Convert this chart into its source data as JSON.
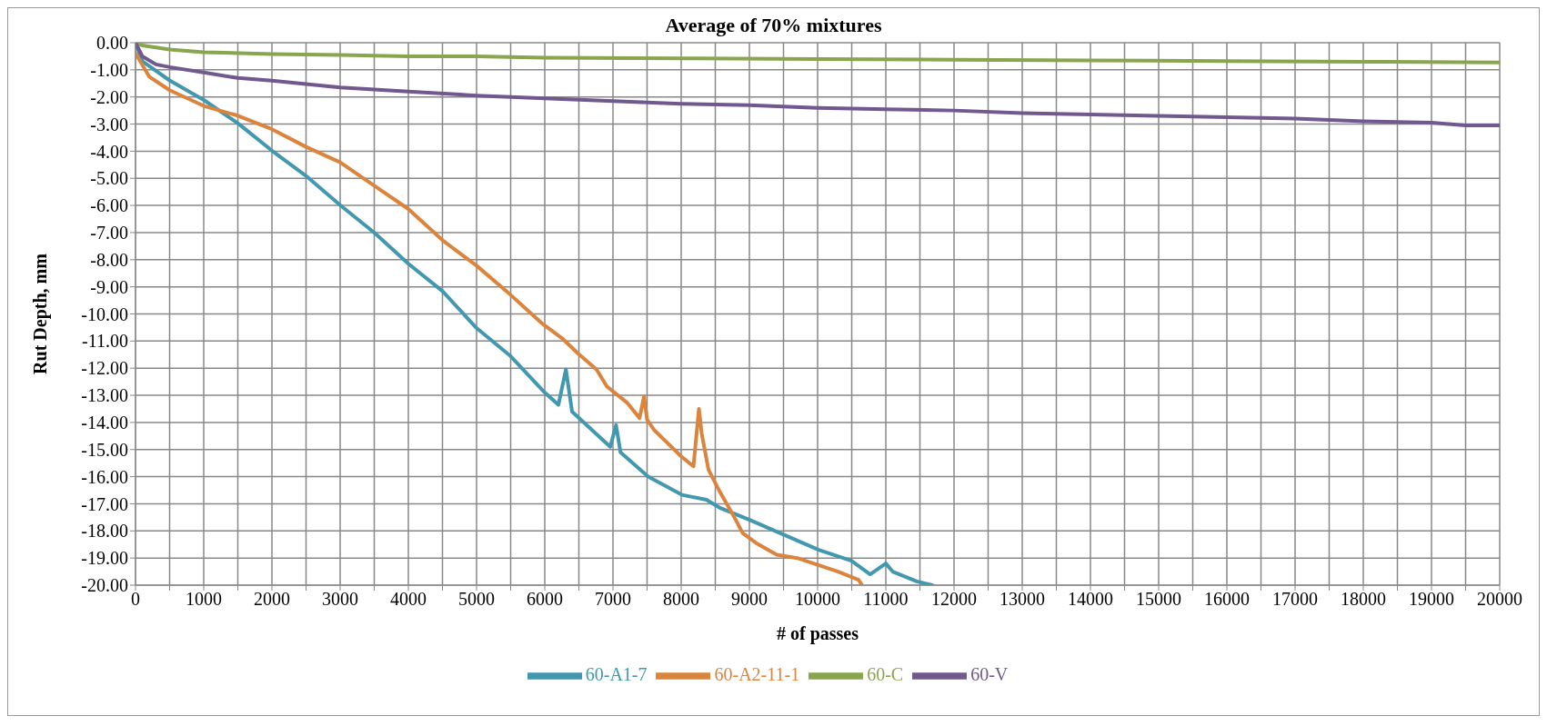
{
  "chart_data": {
    "type": "line",
    "title": "Average of 70% mixtures",
    "xlabel": "# of passes",
    "ylabel": "Rut Depth, mm",
    "xlim": [
      0,
      20000
    ],
    "ylim": [
      -20,
      0
    ],
    "xticks": [
      0,
      {
        "value": 500,
        "label": null
      },
      1000,
      {
        "value": 1500,
        "label": null
      },
      2000,
      {
        "value": 2500,
        "label": null
      },
      3000,
      {
        "value": 3500,
        "label": null
      },
      4000,
      {
        "value": 4500,
        "label": null
      },
      5000,
      {
        "value": 5500,
        "label": null
      },
      6000,
      {
        "value": 6500,
        "label": null
      },
      7000,
      {
        "value": 7500,
        "label": null
      },
      8000,
      {
        "value": 8500,
        "label": null
      },
      9000,
      {
        "value": 9500,
        "label": null
      },
      10000,
      {
        "value": 10500,
        "label": null
      },
      11000,
      {
        "value": 11500,
        "label": null
      },
      12000,
      {
        "value": 12500,
        "label": null
      },
      13000,
      {
        "value": 13500,
        "label": null
      },
      14000,
      {
        "value": 14500,
        "label": null
      },
      15000,
      {
        "value": 15500,
        "label": null
      },
      16000,
      {
        "value": 16500,
        "label": null
      },
      17000,
      {
        "value": 17500,
        "label": null
      },
      18000,
      {
        "value": 18500,
        "label": null
      },
      19000,
      {
        "value": 19500,
        "label": null
      },
      20000
    ],
    "yticks": [
      {
        "value": 0,
        "label": "0.00"
      },
      {
        "value": -1,
        "label": "-1.00"
      },
      {
        "value": -2,
        "label": "-2.00"
      },
      {
        "value": -3,
        "label": "-3.00"
      },
      {
        "value": -4,
        "label": "-4.00"
      },
      {
        "value": -5,
        "label": "-5.00"
      },
      {
        "value": -6,
        "label": "-6.00"
      },
      {
        "value": -7,
        "label": "-7.00"
      },
      {
        "value": -8,
        "label": "-8.00"
      },
      {
        "value": -9,
        "label": "-9.00"
      },
      {
        "value": -10,
        "label": "-10.00"
      },
      {
        "value": -11,
        "label": "-11.00"
      },
      {
        "value": -12,
        "label": "-12.00"
      },
      {
        "value": -13,
        "label": "-13.00"
      },
      {
        "value": -14,
        "label": "-14.00"
      },
      {
        "value": -15,
        "label": "-15.00"
      },
      {
        "value": -16,
        "label": "-16.00"
      },
      {
        "value": -17,
        "label": "-17.00"
      },
      {
        "value": -18,
        "label": "-18.00"
      },
      {
        "value": -19,
        "label": "-19.00"
      },
      {
        "value": -20,
        "label": "-20.00"
      }
    ],
    "grid": true,
    "legend": "bottom",
    "marker": "none",
    "line_style": "solid",
    "series": [
      {
        "name": "60-A1-7",
        "color": "#4198af",
        "x": [
          0,
          100,
          500,
          1000,
          1500,
          2000,
          2500,
          3000,
          3500,
          4000,
          4500,
          5000,
          5500,
          6000,
          6200,
          6310,
          6400,
          6960,
          7045,
          7110,
          7515,
          8010,
          8370,
          8575,
          9010,
          10015,
          10495,
          10770,
          11000,
          11100,
          11455,
          11680
        ],
        "values": [
          0,
          -0.68,
          -1.39,
          -2.11,
          -2.97,
          -3.98,
          -4.91,
          -5.99,
          -7.0,
          -8.15,
          -9.16,
          -10.52,
          -11.56,
          -12.9,
          -13.35,
          -12.05,
          -13.6,
          -14.9,
          -14.1,
          -15.1,
          -16.0,
          -16.67,
          -16.85,
          -17.16,
          -17.6,
          -18.7,
          -19.1,
          -19.6,
          -19.2,
          -19.5,
          -19.86,
          -20
        ]
      },
      {
        "name": "60-A2-11-1",
        "color": "#db843d",
        "x": [
          0,
          200,
          500,
          1000,
          1500,
          2000,
          2500,
          3000,
          3500,
          4000,
          4500,
          5000,
          5500,
          5950,
          6250,
          6480,
          6760,
          6910,
          7210,
          7390,
          7455,
          7500,
          7600,
          7800,
          8000,
          8180,
          8260,
          8300,
          8400,
          8550,
          8800,
          8900,
          9100,
          9400,
          9700,
          10000,
          10300,
          10600,
          10650
        ],
        "values": [
          -0.39,
          -1.25,
          -1.75,
          -2.33,
          -2.69,
          -3.19,
          -3.84,
          -4.41,
          -5.27,
          -6.13,
          -7.28,
          -8.22,
          -9.3,
          -10.33,
          -10.89,
          -11.44,
          -12.05,
          -12.67,
          -13.28,
          -13.84,
          -13.04,
          -13.9,
          -14.27,
          -14.76,
          -15.25,
          -15.62,
          -13.5,
          -14.4,
          -15.74,
          -16.48,
          -17.59,
          -18.08,
          -18.45,
          -18.88,
          -19.0,
          -19.25,
          -19.5,
          -19.8,
          -20
        ]
      },
      {
        "name": "60-C",
        "color": "#89a54e",
        "x": [
          0,
          100,
          500,
          1000,
          2000,
          3000,
          4000,
          5000,
          6000,
          8000,
          10000,
          12000,
          14000,
          16000,
          18000,
          20000
        ],
        "values": [
          0,
          -0.1,
          -0.25,
          -0.35,
          -0.42,
          -0.45,
          -0.5,
          -0.5,
          -0.55,
          -0.58,
          -0.6,
          -0.63,
          -0.65,
          -0.68,
          -0.7,
          -0.73
        ]
      },
      {
        "name": "60-V",
        "color": "#71588f",
        "x": [
          0,
          100,
          300,
          500,
          1000,
          1500,
          2000,
          3000,
          4000,
          5000,
          6000,
          7000,
          8000,
          9000,
          10000,
          11000,
          12000,
          13000,
          14000,
          15000,
          16000,
          17000,
          18000,
          19000,
          19500,
          20000
        ],
        "values": [
          0,
          -0.5,
          -0.8,
          -0.9,
          -1.1,
          -1.3,
          -1.4,
          -1.65,
          -1.8,
          -1.95,
          -2.05,
          -2.15,
          -2.25,
          -2.3,
          -2.4,
          -2.45,
          -2.5,
          -2.6,
          -2.65,
          -2.7,
          -2.75,
          -2.8,
          -2.9,
          -2.95,
          -3.05,
          -3.05
        ]
      }
    ]
  }
}
